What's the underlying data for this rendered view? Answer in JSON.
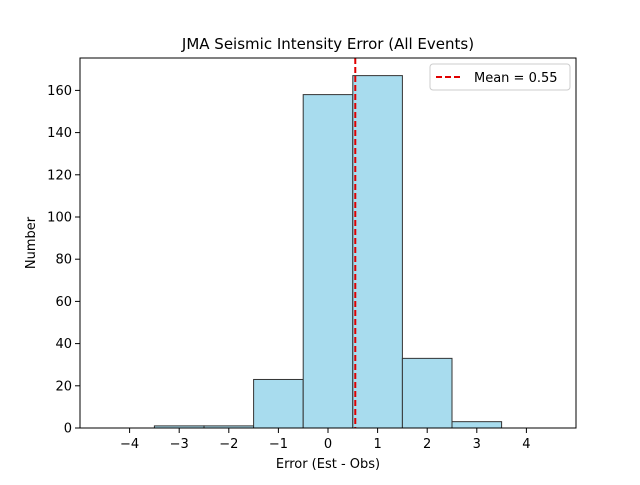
{
  "chart_data": {
    "type": "bar",
    "title": "JMA Seismic Intensity Error (All Events)",
    "xlabel": "Error (Est - Obs)",
    "ylabel": "Number",
    "xlim": [
      -5.0,
      5.0
    ],
    "ylim": [
      0,
      175.35
    ],
    "xticks": [
      -4,
      -3,
      -2,
      -1,
      0,
      1,
      2,
      3,
      4
    ],
    "xtick_labels": [
      "−4",
      "−3",
      "−2",
      "−1",
      "0",
      "1",
      "2",
      "3",
      "4"
    ],
    "yticks": [
      0,
      20,
      40,
      60,
      80,
      100,
      120,
      140,
      160
    ],
    "ytick_labels": [
      "0",
      "20",
      "40",
      "60",
      "80",
      "100",
      "120",
      "140",
      "160"
    ],
    "bins": [
      {
        "left": -4.5,
        "right": -3.5,
        "count": 0
      },
      {
        "left": -3.5,
        "right": -2.5,
        "count": 1
      },
      {
        "left": -2.5,
        "right": -1.5,
        "count": 1
      },
      {
        "left": -1.5,
        "right": -0.5,
        "count": 23
      },
      {
        "left": -0.5,
        "right": 0.5,
        "count": 158
      },
      {
        "left": 0.5,
        "right": 1.5,
        "count": 167
      },
      {
        "left": 1.5,
        "right": 2.5,
        "count": 33
      },
      {
        "left": 2.5,
        "right": 3.5,
        "count": 3
      },
      {
        "left": 3.5,
        "right": 4.5,
        "count": 0
      }
    ],
    "mean_line": {
      "value": 0.55,
      "label": "Mean = 0.55",
      "color": "#e00000"
    },
    "bar_color": "#a8dcee",
    "bar_edge_color": "#333333",
    "legend_position": "top-right",
    "grid": false
  }
}
